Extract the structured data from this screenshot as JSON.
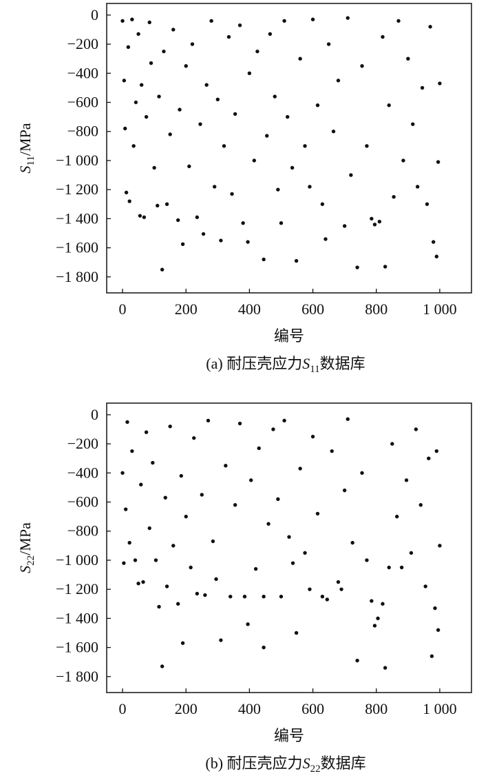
{
  "chart_data": [
    {
      "type": "scatter",
      "color": "#111111",
      "caption": {
        "prefix": "(a) 耐压壳应力",
        "symbol": "S",
        "subscript": "11",
        "suffix": "数据库"
      },
      "xlabel": "编号",
      "ylabel": {
        "symbol": "S",
        "subscript": "11",
        "unit": "/MPa"
      },
      "xlim": [
        -50,
        1100
      ],
      "ylim": [
        -1910,
        80
      ],
      "xticks": [
        0,
        200,
        400,
        600,
        800,
        {
          "value": 1000,
          "label": "1 000"
        }
      ],
      "yticks": [
        0,
        {
          "value": -200,
          "label": "−200"
        },
        {
          "value": -400,
          "label": "−400"
        },
        {
          "value": -600,
          "label": "−600"
        },
        {
          "value": -800,
          "label": "−800"
        },
        {
          "value": -1000,
          "label": "−1 000"
        },
        {
          "value": -1200,
          "label": "−1 200"
        },
        {
          "value": -1400,
          "label": "−1 400"
        },
        {
          "value": -1600,
          "label": "−1 600"
        },
        {
          "value": -1800,
          "label": "−1 800"
        }
      ],
      "x": [
        0,
        5,
        8,
        12,
        18,
        22,
        30,
        35,
        42,
        50,
        55,
        60,
        68,
        75,
        85,
        90,
        100,
        110,
        115,
        125,
        130,
        140,
        150,
        160,
        175,
        180,
        190,
        200,
        210,
        220,
        235,
        245,
        255,
        265,
        280,
        290,
        300,
        310,
        320,
        335,
        345,
        355,
        370,
        380,
        395,
        400,
        415,
        425,
        445,
        455,
        465,
        480,
        490,
        500,
        510,
        520,
        535,
        548,
        560,
        575,
        590,
        600,
        615,
        630,
        640,
        650,
        665,
        680,
        700,
        710,
        720,
        740,
        755,
        770,
        785,
        795,
        810,
        820,
        828,
        840,
        855,
        870,
        885,
        900,
        915,
        930,
        945,
        960,
        970,
        980,
        990,
        995,
        1000
      ],
      "values": [
        -40,
        -450,
        -780,
        -1220,
        -220,
        -1280,
        -30,
        -900,
        -600,
        -130,
        -1380,
        -480,
        -1390,
        -700,
        -50,
        -330,
        -1050,
        -1310,
        -560,
        -1750,
        -250,
        -1300,
        -820,
        -100,
        -1410,
        -650,
        -1575,
        -350,
        -1040,
        -200,
        -1390,
        -750,
        -1505,
        -480,
        -40,
        -1180,
        -580,
        -1550,
        -900,
        -150,
        -1230,
        -680,
        -70,
        -1430,
        -1560,
        -400,
        -1000,
        -250,
        -1680,
        -830,
        -130,
        -560,
        -1200,
        -1430,
        -40,
        -700,
        -1050,
        -1690,
        -300,
        -900,
        -1180,
        -30,
        -620,
        -1300,
        -1540,
        -200,
        -800,
        -450,
        -1450,
        -20,
        -1100,
        -1735,
        -350,
        -900,
        -1400,
        -1440,
        -1420,
        -150,
        -1730,
        -620,
        -1250,
        -40,
        -1000,
        -300,
        -750,
        -1180,
        -500,
        -1300,
        -80,
        -1560,
        -1660,
        -1010,
        -470
      ]
    },
    {
      "type": "scatter",
      "color": "#111111",
      "caption": {
        "prefix": "(b) 耐压壳应力",
        "symbol": "S",
        "subscript": "22",
        "suffix": "数据库"
      },
      "xlabel": "编号",
      "ylabel": {
        "symbol": "S",
        "subscript": "22",
        "unit": "/MPa"
      },
      "xlim": [
        -50,
        1100
      ],
      "ylim": [
        -1910,
        80
      ],
      "xticks": [
        0,
        200,
        400,
        600,
        800,
        {
          "value": 1000,
          "label": "1 000"
        }
      ],
      "yticks": [
        0,
        {
          "value": -200,
          "label": "−200"
        },
        {
          "value": -400,
          "label": "−400"
        },
        {
          "value": -600,
          "label": "−600"
        },
        {
          "value": -800,
          "label": "−800"
        },
        {
          "value": -1000,
          "label": "−1 000"
        },
        {
          "value": -1200,
          "label": "−1 200"
        },
        {
          "value": -1400,
          "label": "−1 400"
        },
        {
          "value": -1600,
          "label": "−1 600"
        },
        {
          "value": -1800,
          "label": "−1 800"
        }
      ],
      "x": [
        0,
        4,
        10,
        15,
        22,
        30,
        40,
        50,
        58,
        65,
        75,
        85,
        95,
        105,
        115,
        125,
        135,
        140,
        150,
        160,
        175,
        185,
        190,
        200,
        215,
        225,
        235,
        250,
        260,
        270,
        285,
        295,
        310,
        325,
        340,
        355,
        370,
        385,
        395,
        405,
        420,
        430,
        445,
        445,
        460,
        475,
        490,
        500,
        510,
        525,
        537,
        548,
        560,
        575,
        590,
        600,
        615,
        630,
        645,
        660,
        680,
        690,
        700,
        710,
        725,
        740,
        755,
        770,
        785,
        795,
        805,
        820,
        828,
        840,
        850,
        865,
        880,
        895,
        910,
        925,
        940,
        955,
        965,
        975,
        985,
        990,
        995,
        1000
      ],
      "values": [
        -400,
        -1020,
        -650,
        -50,
        -880,
        -250,
        -1000,
        -1160,
        -480,
        -1150,
        -120,
        -780,
        -330,
        -1000,
        -1320,
        -1730,
        -570,
        -1180,
        -80,
        -900,
        -1300,
        -420,
        -1570,
        -700,
        -1050,
        -160,
        -1230,
        -550,
        -1240,
        -40,
        -870,
        -1130,
        -1550,
        -350,
        -1250,
        -620,
        -60,
        -1250,
        -1440,
        -450,
        -1060,
        -230,
        -1250,
        -1600,
        -750,
        -100,
        -580,
        -1250,
        -40,
        -840,
        -1020,
        -1500,
        -370,
        -950,
        -1200,
        -150,
        -680,
        -1250,
        -1270,
        -250,
        -1150,
        -1200,
        -520,
        -30,
        -880,
        -1690,
        -400,
        -1000,
        -1280,
        -1450,
        -1400,
        -1300,
        -1740,
        -1050,
        -200,
        -700,
        -1050,
        -450,
        -950,
        -100,
        -620,
        -1180,
        -300,
        -1660,
        -1330,
        -250,
        -1480,
        -900
      ]
    }
  ]
}
